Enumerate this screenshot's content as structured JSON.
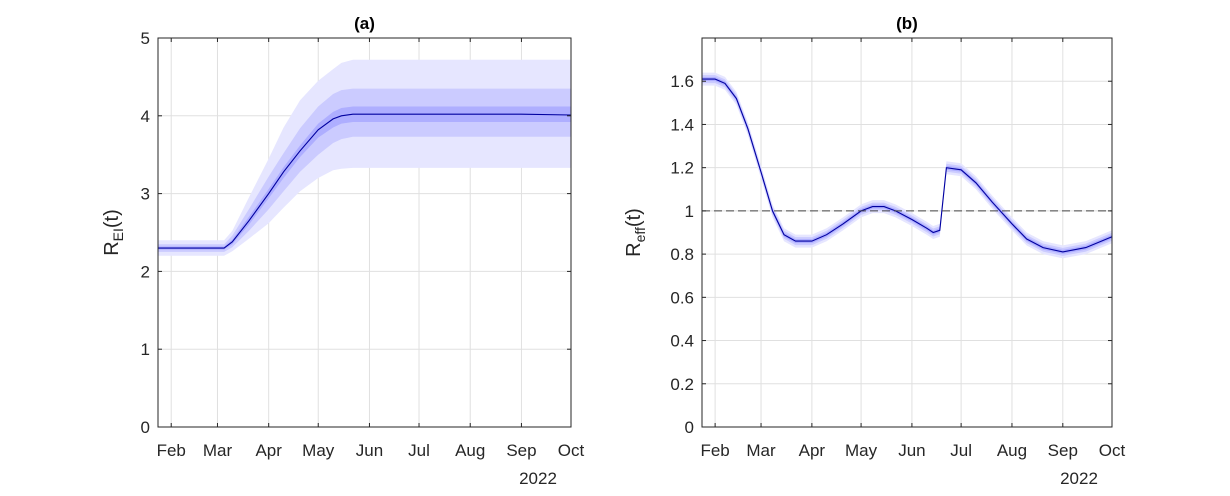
{
  "figure": {
    "colors": {
      "line": "#0000a0",
      "band_outer": "#e6e6ff",
      "band_middle": "#cbcbff",
      "band_inner": "#aeaeff",
      "grid": "#e0e0e0",
      "axis": "#262626",
      "reference": "#444444"
    }
  },
  "chart_data": [
    {
      "type": "line",
      "title": "(a)",
      "ylabel": "R",
      "ylabel_sub": "EI",
      "ylabel_suffix": "(t)",
      "year_label": "2022",
      "xlim": [
        "2022-01-24",
        "2022-10-01"
      ],
      "ylim": [
        0,
        5
      ],
      "yticks": [
        0,
        1,
        2,
        3,
        4,
        5
      ],
      "xticks": [
        {
          "date": "2022-02-01",
          "label": "Feb"
        },
        {
          "date": "2022-03-01",
          "label": "Mar"
        },
        {
          "date": "2022-04-01",
          "label": "Apr"
        },
        {
          "date": "2022-05-01",
          "label": "May"
        },
        {
          "date": "2022-06-01",
          "label": "Jun"
        },
        {
          "date": "2022-07-01",
          "label": "Jul"
        },
        {
          "date": "2022-08-01",
          "label": "Aug"
        },
        {
          "date": "2022-09-01",
          "label": "Sep"
        },
        {
          "date": "2022-10-01",
          "label": "Oct"
        }
      ],
      "grid": true,
      "series": [
        {
          "x": [
            "2022-01-24",
            "2022-03-01",
            "2022-03-05",
            "2022-03-10",
            "2022-03-20",
            "2022-04-01",
            "2022-04-10",
            "2022-04-20",
            "2022-05-01",
            "2022-05-10",
            "2022-05-15",
            "2022-05-22",
            "2022-06-01",
            "2022-07-01",
            "2022-08-01",
            "2022-09-01",
            "2022-10-01"
          ],
          "y": [
            2.3,
            2.3,
            2.3,
            2.38,
            2.65,
            3.0,
            3.28,
            3.55,
            3.82,
            3.96,
            4.0,
            4.02,
            4.02,
            4.02,
            4.02,
            4.02,
            4.01
          ],
          "band_inner_low": [
            2.28,
            2.28,
            2.28,
            2.35,
            2.6,
            2.94,
            3.2,
            3.47,
            3.72,
            3.85,
            3.9,
            3.92,
            3.92,
            3.92,
            3.92,
            3.92,
            3.92
          ],
          "band_inner_high": [
            2.32,
            2.32,
            2.32,
            2.41,
            2.7,
            3.06,
            3.34,
            3.62,
            3.9,
            4.05,
            4.1,
            4.12,
            4.12,
            4.12,
            4.12,
            4.12,
            4.12
          ],
          "band_middle_low": [
            2.25,
            2.25,
            2.25,
            2.31,
            2.52,
            2.8,
            3.03,
            3.28,
            3.5,
            3.65,
            3.7,
            3.73,
            3.73,
            3.73,
            3.73,
            3.73,
            3.73
          ],
          "band_middle_high": [
            2.35,
            2.35,
            2.35,
            2.46,
            2.8,
            3.22,
            3.52,
            3.84,
            4.12,
            4.28,
            4.33,
            4.35,
            4.35,
            4.35,
            4.35,
            4.35,
            4.35
          ],
          "band_outer_low": [
            2.2,
            2.2,
            2.2,
            2.26,
            2.42,
            2.62,
            2.82,
            3.03,
            3.2,
            3.3,
            3.32,
            3.33,
            3.33,
            3.33,
            3.33,
            3.33,
            3.33
          ],
          "band_outer_high": [
            2.4,
            2.4,
            2.4,
            2.52,
            2.95,
            3.45,
            3.85,
            4.2,
            4.45,
            4.6,
            4.68,
            4.72,
            4.72,
            4.72,
            4.72,
            4.72,
            4.72
          ]
        }
      ]
    },
    {
      "type": "line",
      "title": "(b)",
      "ylabel": "R",
      "ylabel_sub": "eff",
      "ylabel_suffix": "(t)",
      "year_label": "2022",
      "xlim": [
        "2022-01-24",
        "2022-10-01"
      ],
      "ylim": [
        0,
        1.8
      ],
      "yticks": [
        0,
        0.2,
        0.4,
        0.6,
        0.8,
        1,
        1.2,
        1.4,
        1.6
      ],
      "ytick_labels": [
        "0",
        "0.2",
        "0.4",
        "0.6",
        "0.8",
        "1",
        "1.2",
        "1.4",
        "1.6"
      ],
      "xticks": [
        {
          "date": "2022-02-01",
          "label": "Feb"
        },
        {
          "date": "2022-03-01",
          "label": "Mar"
        },
        {
          "date": "2022-04-01",
          "label": "Apr"
        },
        {
          "date": "2022-05-01",
          "label": "May"
        },
        {
          "date": "2022-06-01",
          "label": "Jun"
        },
        {
          "date": "2022-07-01",
          "label": "Jul"
        },
        {
          "date": "2022-08-01",
          "label": "Aug"
        },
        {
          "date": "2022-09-01",
          "label": "Sep"
        },
        {
          "date": "2022-10-01",
          "label": "Oct"
        }
      ],
      "grid": true,
      "reference_line": 1,
      "series": [
        {
          "x": [
            "2022-01-24",
            "2022-02-01",
            "2022-02-07",
            "2022-02-14",
            "2022-02-21",
            "2022-03-01",
            "2022-03-08",
            "2022-03-15",
            "2022-03-22",
            "2022-04-01",
            "2022-04-10",
            "2022-04-20",
            "2022-05-01",
            "2022-05-08",
            "2022-05-15",
            "2022-05-22",
            "2022-06-01",
            "2022-06-10",
            "2022-06-14",
            "2022-06-18",
            "2022-06-22",
            "2022-07-01",
            "2022-07-10",
            "2022-07-20",
            "2022-08-01",
            "2022-08-10",
            "2022-08-20",
            "2022-09-01",
            "2022-09-15",
            "2022-10-01"
          ],
          "y": [
            1.61,
            1.61,
            1.59,
            1.52,
            1.38,
            1.18,
            1.0,
            0.89,
            0.86,
            0.86,
            0.89,
            0.94,
            1.0,
            1.02,
            1.02,
            1.0,
            0.96,
            0.92,
            0.9,
            0.91,
            1.2,
            1.19,
            1.13,
            1.04,
            0.94,
            0.87,
            0.83,
            0.81,
            0.83,
            0.88
          ]
        }
      ]
    }
  ]
}
